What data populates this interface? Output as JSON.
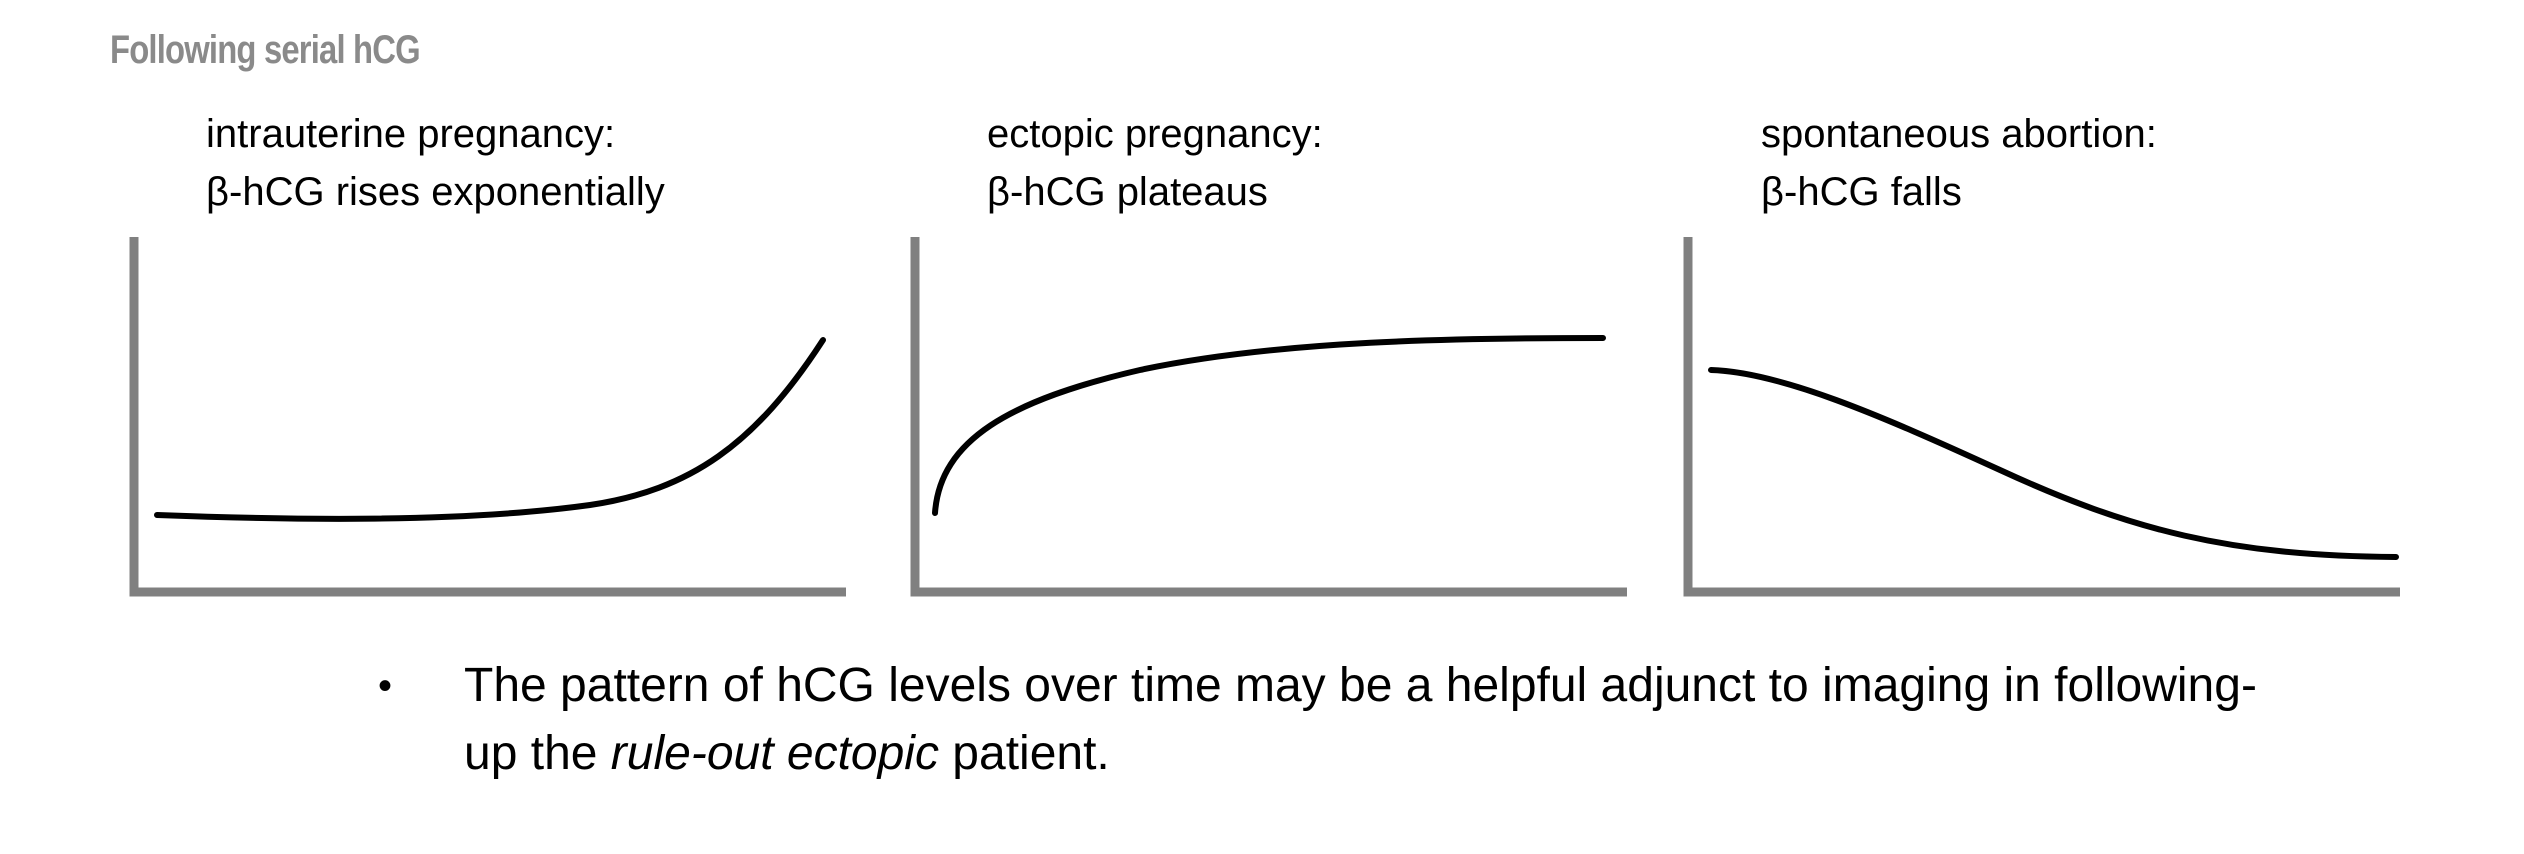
{
  "header": {
    "section_title": "Following serial hCG"
  },
  "panels": [
    {
      "line1": "intrauterine pregnancy:",
      "line2": "β-hCG rises exponentially"
    },
    {
      "line1": "ectopic pregnancy:",
      "line2": "β-hCG plateaus"
    },
    {
      "line1": "spontaneous abortion:",
      "line2": "β-hCG falls"
    }
  ],
  "bullet": {
    "marker": "•",
    "line1": "The pattern of hCG levels over time may be a helpful adjunct to imaging in following-",
    "line2_before": "up the ",
    "line2_italic": "rule-out ectopic",
    "line2_after": " patient."
  },
  "colors": {
    "axis": "#808080",
    "curve": "#000000",
    "title": "#8a8a8a"
  }
}
